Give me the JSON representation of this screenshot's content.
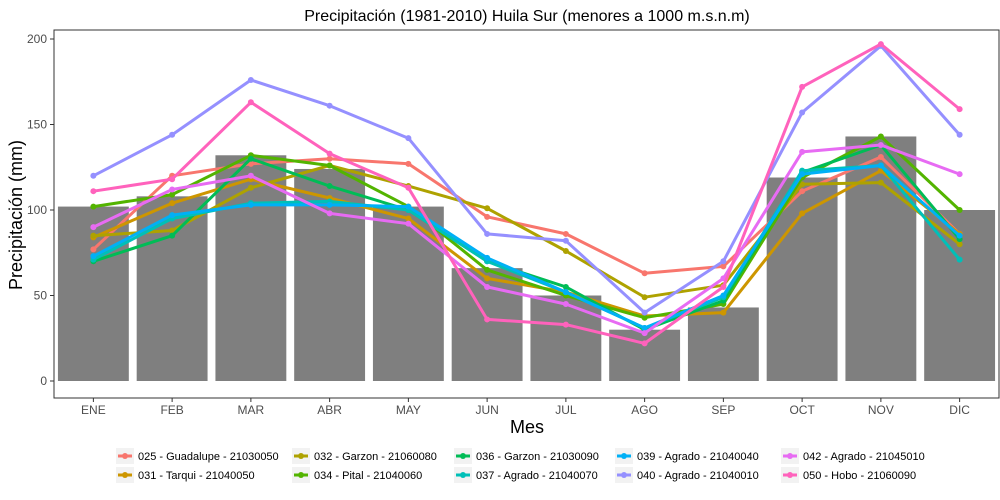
{
  "chart_data": {
    "type": "bar",
    "title": "Precipitación (1981-2010) Huila Sur (menores a 1000 m.s.n.m)",
    "xlabel": "Mes",
    "ylabel": "Precipitación (mm)",
    "ylim": [
      0,
      200
    ],
    "yticks": [
      0,
      50,
      100,
      150,
      200
    ],
    "grid": false,
    "legend_position": "bottom",
    "categories": [
      "ENE",
      "FEB",
      "MAR",
      "ABR",
      "MAY",
      "JUN",
      "JUL",
      "AGO",
      "SEP",
      "OCT",
      "NOV",
      "DIC"
    ],
    "bars": {
      "color": "#7f7f7f",
      "values": [
        102,
        108,
        132,
        124,
        102,
        66,
        50,
        30,
        43,
        119,
        143,
        100
      ]
    },
    "series": [
      {
        "name": "025 - Guadalupe - 21030050",
        "color": "#F8766D",
        "values": [
          77,
          120,
          127,
          130,
          127,
          96,
          86,
          63,
          67,
          111,
          131,
          86
        ]
      },
      {
        "name": "031 - Tarqui - 21040050",
        "color": "#CD9600",
        "values": [
          84,
          104,
          118,
          107,
          95,
          60,
          52,
          38,
          40,
          98,
          123,
          86
        ]
      },
      {
        "name": "032 - Garzon - 21060080",
        "color": "#AEA200",
        "values": [
          85,
          88,
          113,
          126,
          114,
          101,
          76,
          49,
          56,
          115,
          116,
          80
        ]
      },
      {
        "name": "034 - Pital - 21040060",
        "color": "#53B400",
        "values": [
          102,
          109,
          132,
          126,
          102,
          65,
          50,
          37,
          45,
          119,
          143,
          100
        ]
      },
      {
        "name": "036 - Garzon - 21030090",
        "color": "#00BC56",
        "values": [
          70,
          85,
          130,
          114,
          100,
          70,
          55,
          30,
          47,
          122,
          138,
          83
        ]
      },
      {
        "name": "037 - Agrado - 21040070",
        "color": "#00C0B8",
        "values": [
          71,
          95,
          104,
          105,
          100,
          70,
          52,
          31,
          49,
          123,
          126,
          71
        ]
      },
      {
        "name": "039 - Agrado - 21040040",
        "color": "#00B0F6",
        "values": [
          73,
          97,
          103,
          103,
          102,
          72,
          52,
          31,
          50,
          121,
          126,
          85
        ]
      },
      {
        "name": "040 - Agrado - 21040010",
        "color": "#9590FF",
        "values": [
          120,
          144,
          176,
          161,
          142,
          86,
          82,
          40,
          70,
          157,
          196,
          144
        ]
      },
      {
        "name": "042 - Agrado - 21045010",
        "color": "#E76BF3",
        "values": [
          90,
          112,
          120,
          98,
          92,
          55,
          45,
          28,
          60,
          134,
          138,
          121
        ]
      },
      {
        "name": "050 - Hobo - 21060090",
        "color": "#FF62BC",
        "values": [
          111,
          118,
          163,
          133,
          113,
          36,
          33,
          22,
          55,
          172,
          197,
          159
        ]
      }
    ]
  }
}
